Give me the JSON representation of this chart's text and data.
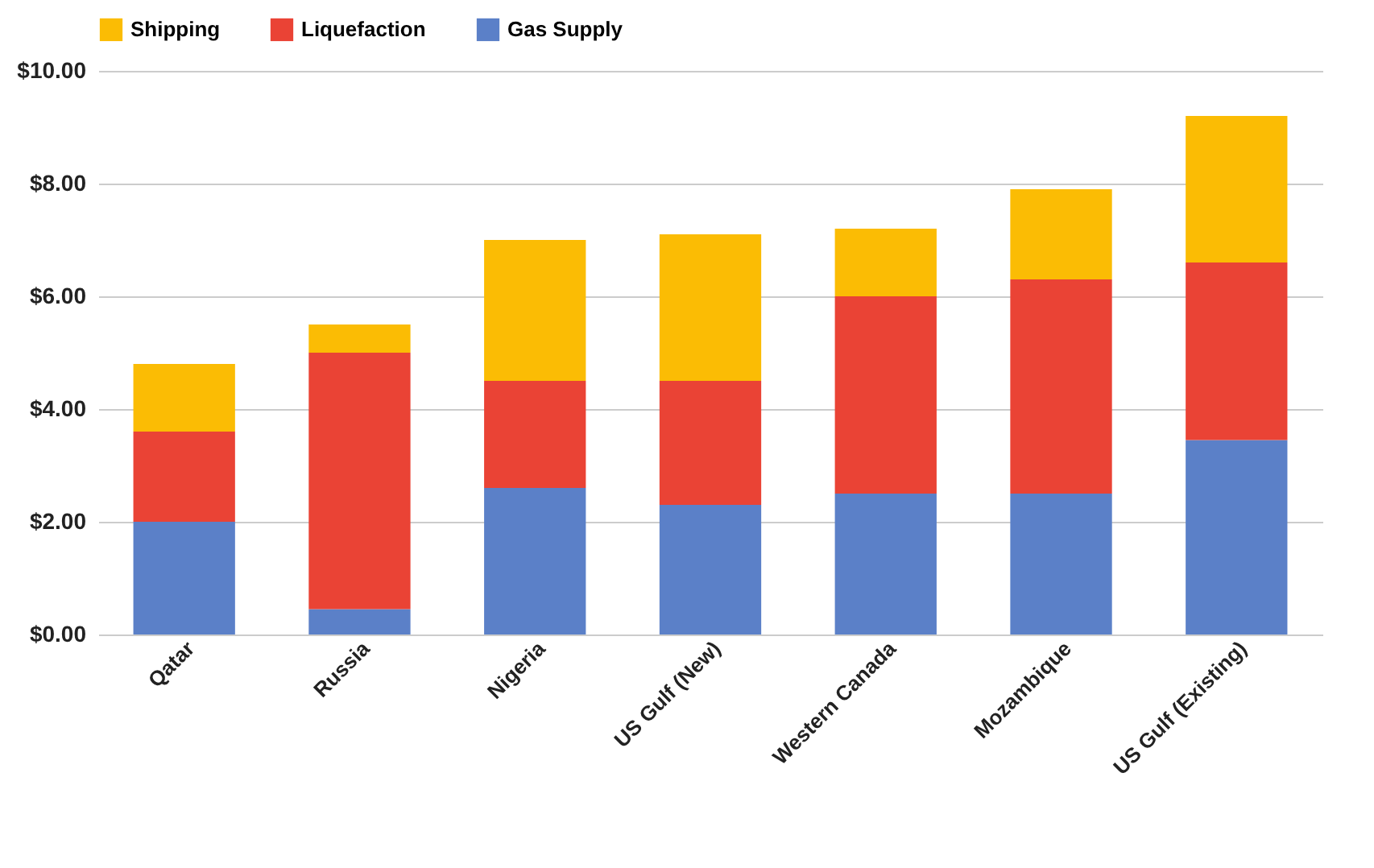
{
  "chart_data": {
    "type": "bar",
    "stacked": true,
    "categories": [
      "Qatar",
      "Russia",
      "Nigeria",
      "US Gulf (New)",
      "Western Canada",
      "Mozambique",
      "US Gulf (Existing)"
    ],
    "series": [
      {
        "name": "Gas Supply",
        "color": "#5b80c8",
        "values": [
          2.0,
          0.45,
          2.6,
          2.3,
          2.5,
          2.5,
          3.45
        ]
      },
      {
        "name": "Liquefaction",
        "color": "#ea4335",
        "values": [
          1.6,
          4.55,
          1.9,
          2.2,
          3.5,
          3.8,
          3.15
        ]
      },
      {
        "name": "Shipping",
        "color": "#fbbc04",
        "values": [
          1.2,
          0.5,
          2.5,
          2.6,
          1.2,
          1.6,
          2.6
        ]
      }
    ],
    "ylim": [
      0,
      10
    ],
    "yticks": [
      {
        "value": 0,
        "label": "$0.00"
      },
      {
        "value": 2,
        "label": "$2.00"
      },
      {
        "value": 4,
        "label": "$4.00"
      },
      {
        "value": 6,
        "label": "$6.00"
      },
      {
        "value": 8,
        "label": "$8.00"
      },
      {
        "value": 10,
        "label": "$10.00"
      }
    ],
    "grid": "y",
    "legend": "top"
  }
}
